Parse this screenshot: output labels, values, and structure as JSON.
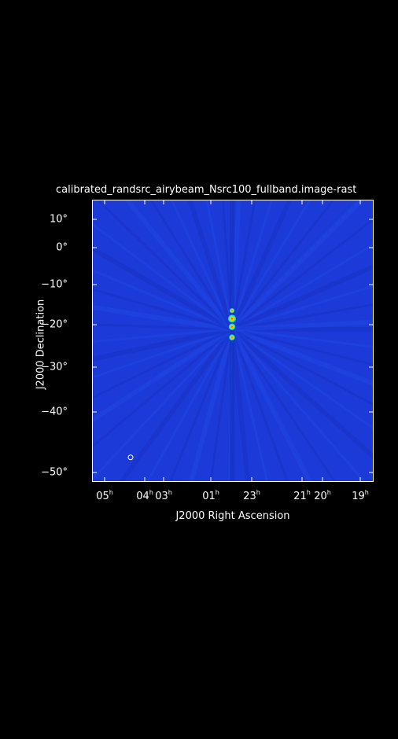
{
  "figure": {
    "title": "calibrated_randsrc_airybeam_Nsrc100_fullband.image-rast",
    "xlabel": "J2000 Right Ascension",
    "ylabel": "J2000 Declination",
    "colors": {
      "background": "#000000",
      "image_base": "#1c3ad8",
      "peak": "#d81010",
      "text": "#ffffff"
    }
  },
  "chart_data": {
    "type": "heatmap",
    "title": "calibrated_randsrc_airybeam_Nsrc100_fullband.image-rast",
    "xlabel": "J2000 Right Ascension",
    "ylabel": "J2000 Declination",
    "y_ticks": [
      "10°",
      "0°",
      "−10°",
      "−20°",
      "−30°",
      "−40°",
      "−50°"
    ],
    "y_tick_values": [
      10,
      0,
      -10,
      -20,
      -30,
      -40,
      -50
    ],
    "x_ticks": [
      {
        "h": "05",
        "u": "h"
      },
      {
        "h": "04",
        "u": "h"
      },
      {
        "h": "03",
        "u": "h"
      },
      {
        "h": "01",
        "u": "h"
      },
      {
        "h": "23",
        "u": "h"
      },
      {
        "h": "21",
        "u": "h"
      },
      {
        "h": "20",
        "u": "h"
      },
      {
        "h": "19",
        "u": "h"
      }
    ],
    "sources": [
      {
        "ra_h": 0.0,
        "dec": -16.5,
        "intensity": 0.3
      },
      {
        "ra_h": 0.0,
        "dec": -18.5,
        "intensity": 1.0
      },
      {
        "ra_h": 0.0,
        "dec": -20.5,
        "intensity": 0.7
      },
      {
        "ra_h": 0.0,
        "dec": -23.0,
        "intensity": 0.55
      }
    ],
    "beam_marker": {
      "ra_h": 4.3,
      "dec": -47.5
    }
  }
}
